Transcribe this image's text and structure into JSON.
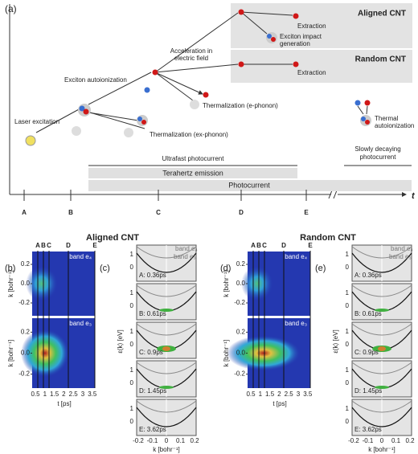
{
  "panel_a": {
    "label": "(a)",
    "aligned_box": "Aligned CNT",
    "random_box": "Random CNT",
    "laser": "Laser excitation",
    "autoionization": "Exciton autoionization",
    "acceleration": [
      "Acceleration in",
      "electric field"
    ],
    "extraction_aligned": "Extraction",
    "impact": [
      "Exciton impact",
      "generation"
    ],
    "extraction_random": "Extraction",
    "thermal_e": "Thermalization (e-phonon)",
    "thermal_ex": "Thermalization (ex-phonon)",
    "thermal_auto": [
      "Thermal",
      "autoionization"
    ],
    "ultrafast": "Ultrafast photocurrent",
    "terahertz": "Terahertz emission",
    "photocurrent": "Photocurrent",
    "slow": [
      "Slowly decaying",
      "photocurrent"
    ],
    "axis_label": "t",
    "ticks": [
      "A",
      "B",
      "C",
      "D",
      "E"
    ]
  },
  "groups": [
    {
      "title": "Aligned CNT",
      "heat_label": "(b)",
      "markers": [
        "A",
        "B",
        "C",
        "D",
        "E"
      ],
      "heatmaps": [
        {
          "band": "band e₄",
          "ylabel": "k  [bohr⁻¹]",
          "yticks": [
            "0.2",
            "0.0",
            "-0.2"
          ]
        },
        {
          "band": "band e₃",
          "ylabel": "k  [bohr⁻¹]",
          "yticks": [
            "0.2",
            "0.0",
            "-0.2"
          ]
        }
      ],
      "heat_xticks": [
        "0.5",
        "1",
        "1.5",
        "2",
        "2.5",
        "3",
        "3.5"
      ],
      "heat_xlabel": "t  [ps]",
      "spec_label": "(c)",
      "spec_ylabel": "ε(k)  [eV]",
      "spec_band_top": "band e₄",
      "spec_band_bottom": "band e₃",
      "panels": [
        {
          "time": "A: 0.36ps",
          "yticks": [
            "1",
            "0"
          ]
        },
        {
          "time": "B: 0.61ps",
          "yticks": [
            "1",
            "0"
          ]
        },
        {
          "time": "C: 0.9ps",
          "yticks": [
            "1",
            "0"
          ]
        },
        {
          "time": "D: 1.45ps",
          "yticks": [
            "1",
            "0"
          ]
        },
        {
          "time": "E: 3.62ps",
          "yticks": [
            "1",
            "0"
          ]
        }
      ],
      "spec_xticks": [
        "-0.2",
        "-0.1",
        "0",
        "0.1",
        "0.2"
      ],
      "spec_xlabel": "k  [bohr⁻¹]"
    },
    {
      "title": "Random CNT",
      "heat_label": "(d)",
      "markers": [
        "A",
        "B",
        "C",
        "D",
        "E"
      ],
      "heatmaps": [
        {
          "band": "band e₄",
          "ylabel": "k  [bohr⁻¹]",
          "yticks": [
            "0.2",
            "0.0",
            "-0.2"
          ]
        },
        {
          "band": "band e₃",
          "ylabel": "k  [bohr⁻¹]",
          "yticks": [
            "0.2",
            "0.0",
            "-0.2"
          ]
        }
      ],
      "heat_xticks": [
        "0.5",
        "1",
        "1.5",
        "2",
        "2.5",
        "3",
        "3.5"
      ],
      "heat_xlabel": "t  [ps]",
      "spec_label": "(e)",
      "spec_ylabel": "ε(k)  [eV]",
      "spec_band_top": "band e₄",
      "spec_band_bottom": "band e₃",
      "panels": [
        {
          "time": "A: 0.36ps",
          "yticks": [
            "1",
            "0"
          ]
        },
        {
          "time": "B: 0.61ps",
          "yticks": [
            "1",
            "0"
          ]
        },
        {
          "time": "C: 0.9ps",
          "yticks": [
            "1",
            "0"
          ]
        },
        {
          "time": "D: 1.45ps",
          "yticks": [
            "1",
            "0"
          ]
        },
        {
          "time": "E: 3.62ps",
          "yticks": [
            "1",
            "0"
          ]
        }
      ],
      "spec_xticks": [
        "-0.2",
        "-0.1",
        "0",
        "0.1",
        "0.2"
      ],
      "spec_xlabel": "k  [bohr⁻¹]"
    }
  ]
}
